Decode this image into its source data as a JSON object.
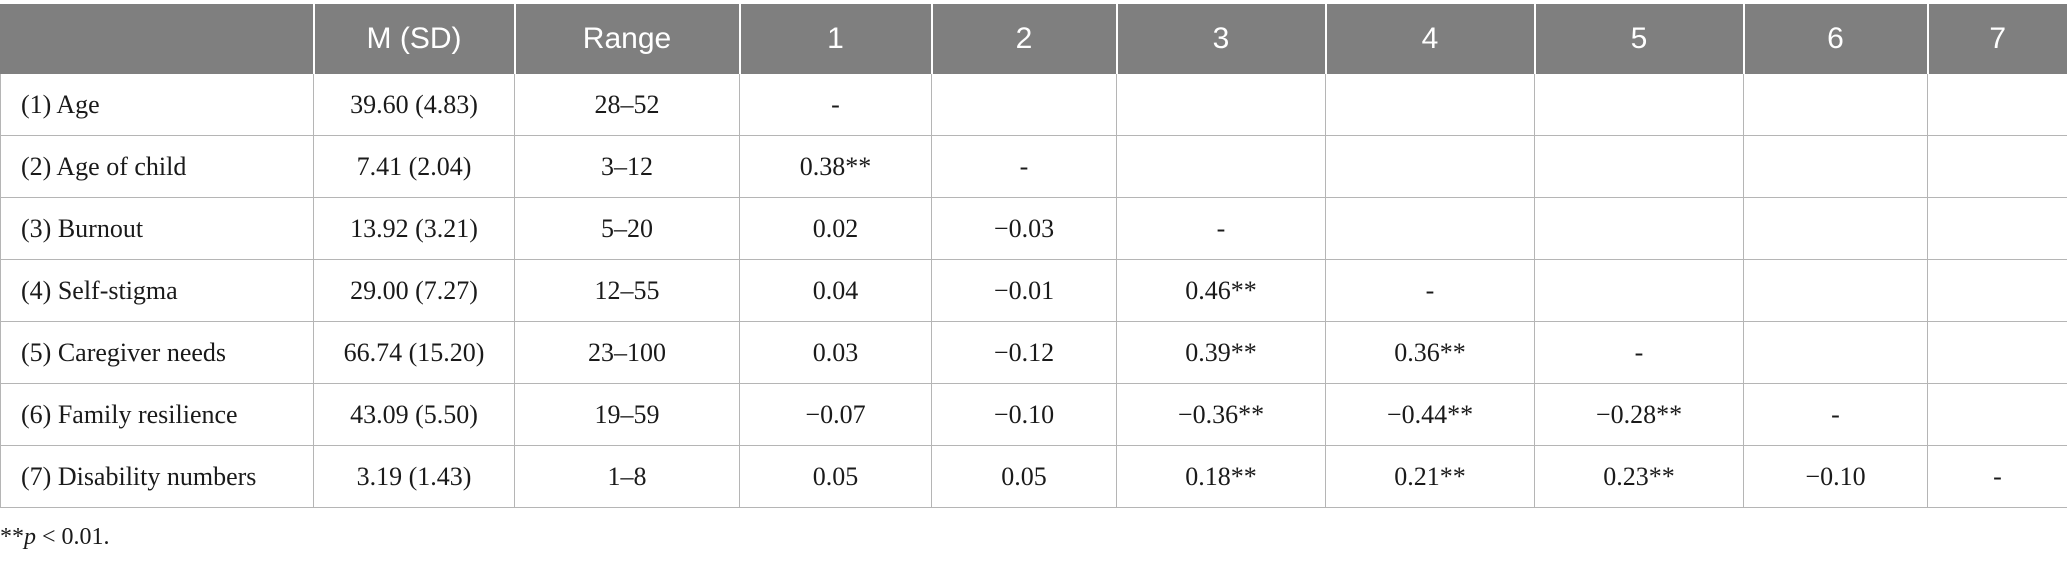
{
  "table": {
    "headers": [
      "",
      "M (SD)",
      "Range",
      "1",
      "2",
      "3",
      "4",
      "5",
      "6",
      "7"
    ],
    "rows": [
      {
        "label": "(1) Age",
        "msd": "39.60 (4.83)",
        "range": "28–52",
        "cells": [
          "-",
          "",
          "",
          "",
          "",
          "",
          ""
        ]
      },
      {
        "label": "(2) Age of child",
        "msd": "7.41 (2.04)",
        "range": "3–12",
        "cells": [
          "0.38**",
          "-",
          "",
          "",
          "",
          "",
          ""
        ]
      },
      {
        "label": "(3) Burnout",
        "msd": "13.92 (3.21)",
        "range": "5–20",
        "cells": [
          "0.02",
          "−0.03",
          "-",
          "",
          "",
          "",
          ""
        ]
      },
      {
        "label": "(4) Self-stigma",
        "msd": "29.00 (7.27)",
        "range": "12–55",
        "cells": [
          "0.04",
          "−0.01",
          "0.46**",
          "-",
          "",
          "",
          ""
        ]
      },
      {
        "label": "(5) Caregiver needs",
        "msd": "66.74 (15.20)",
        "range": "23–100",
        "cells": [
          "0.03",
          "−0.12",
          "0.39**",
          "0.36**",
          "-",
          "",
          ""
        ]
      },
      {
        "label": "(6) Family resilience",
        "msd": "43.09 (5.50)",
        "range": "19–59",
        "cells": [
          "−0.07",
          "−0.10",
          "−0.36**",
          "−0.44**",
          "−0.28**",
          "-",
          ""
        ]
      },
      {
        "label": "(7) Disability numbers",
        "msd": "3.19 (1.43)",
        "range": "1–8",
        "cells": [
          "0.05",
          "0.05",
          "0.18**",
          "0.21**",
          "0.23**",
          "−0.10",
          "-"
        ]
      }
    ]
  },
  "note": {
    "stars": "**",
    "p": "p",
    "rest": " < 0.01."
  }
}
